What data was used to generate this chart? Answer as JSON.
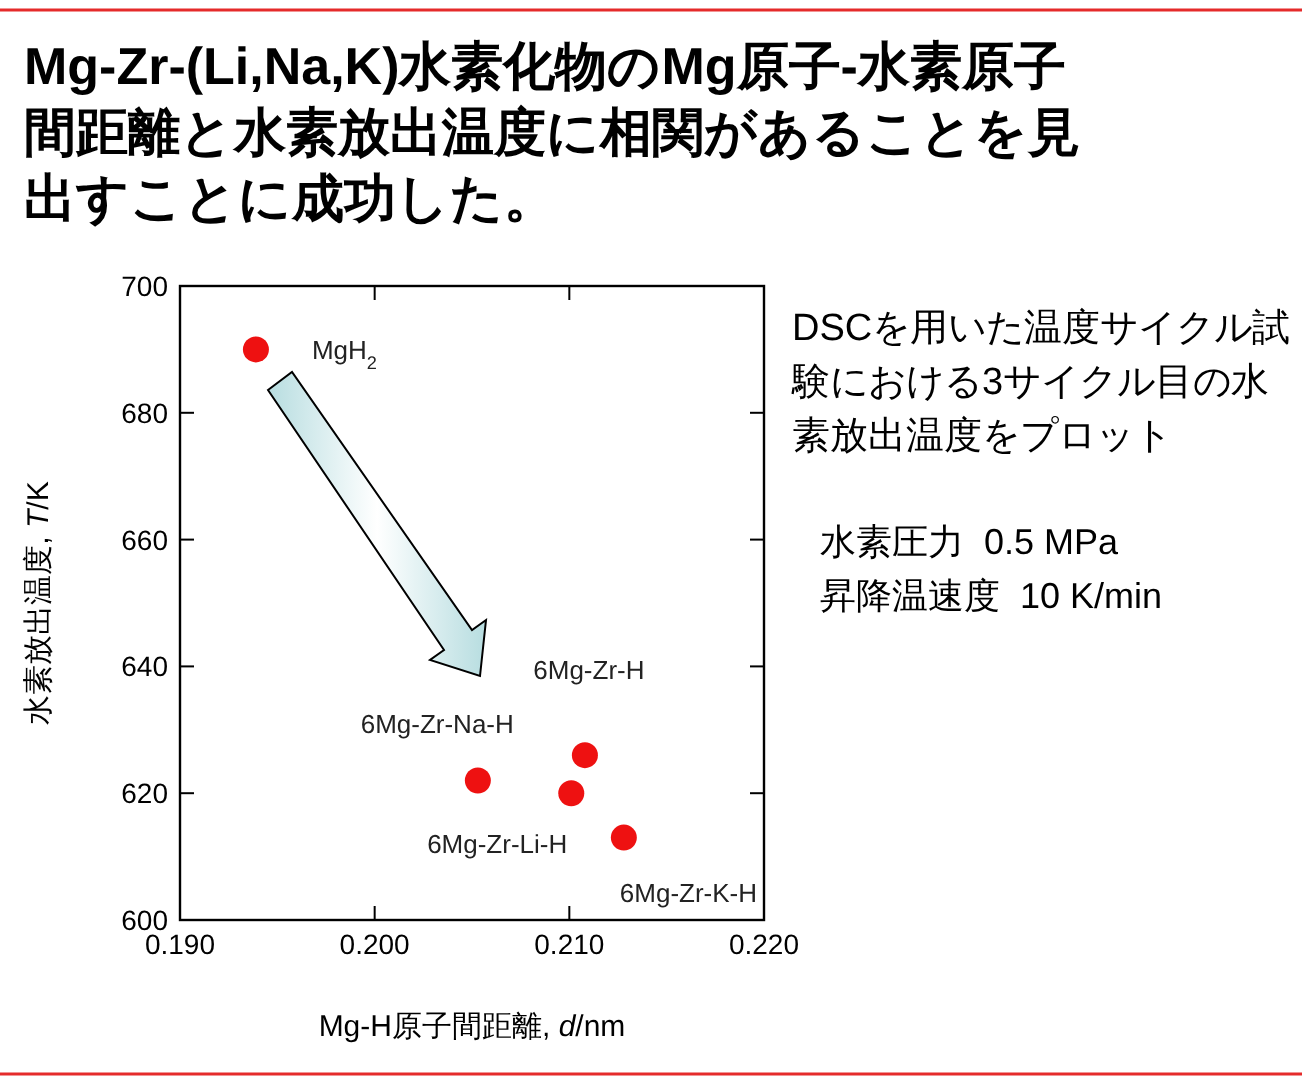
{
  "chart_data": {
    "type": "scatter",
    "title": "Mg-Zr-(Li,Na,K)水素化物のMg原子-水素原子間距離と水素放出温度に相関があることを見出すことに成功した。",
    "xlabel": "Mg-H原子間距離, *d*/nm",
    "ylabel": "水素放出温度, *T*/K",
    "x": [
      0.1939,
      0.2053,
      0.2108,
      0.2101,
      0.2128
    ],
    "values": [
      690,
      622,
      626,
      620,
      613
    ],
    "color": "#ee1111",
    "marker": "circle",
    "grid": false,
    "xlim": [
      0.19,
      0.22
    ],
    "ylim": [
      600,
      700
    ],
    "xticks": [
      {
        "value": 0.19,
        "label": "0.190"
      },
      {
        "value": 0.2,
        "label": "0.200"
      },
      {
        "value": 0.21,
        "label": "0.210"
      },
      {
        "value": 0.22,
        "label": "0.220"
      }
    ],
    "yticks": [
      600,
      620,
      640,
      660,
      680,
      700
    ],
    "annotations": [
      {
        "text": "MgH$_{2}$",
        "x": 0.1939,
        "y": 690
      },
      {
        "text": "6Mg-Zr-Na-H",
        "x": 0.2053,
        "y": 622
      },
      {
        "text": "6Mg-Zr-H",
        "x": 0.2108,
        "y": 626
      },
      {
        "text": "6Mg-Zr-Li-H",
        "x": 0.2101,
        "y": 620
      },
      {
        "text": "6Mg-Zr-K-H",
        "x": 0.2128,
        "y": 613
      },
      "DSCを用いた温度サイクル試験における3サイクル目の水素放出温度をプロット",
      "水素圧力  0.5 MPa",
      "昇降温速度  10 K/min"
    ]
  }
}
